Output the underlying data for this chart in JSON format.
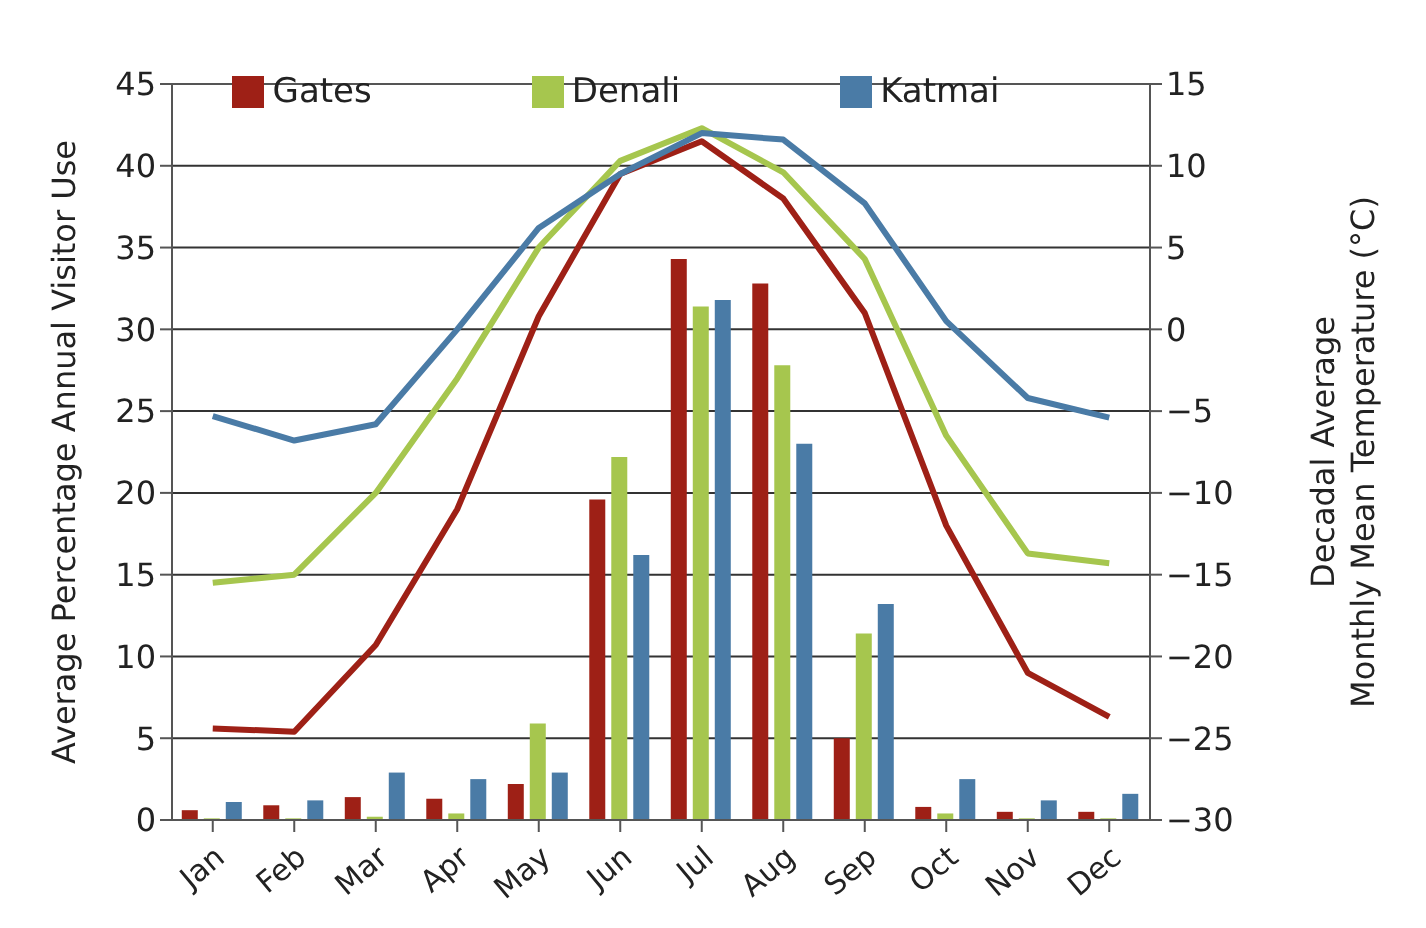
{
  "chart_data": {
    "type": "bar",
    "categories": [
      "Jan",
      "Feb",
      "Mar",
      "Apr",
      "May",
      "Jun",
      "Jul",
      "Aug",
      "Sep",
      "Oct",
      "Nov",
      "Dec"
    ],
    "ylabel": "Average Percentage Annual Visitor Use",
    "y2label": "Decadal Average\nMonthly Mean Temperature (°C)",
    "series": [
      {
        "name": "Gates",
        "color": "#9e2016",
        "values": [
          0.6,
          0.9,
          1.4,
          1.3,
          2.2,
          19.6,
          34.3,
          32.8,
          5.0,
          0.8,
          0.5,
          0.5
        ]
      },
      {
        "name": "Denali",
        "color": "#a6c64e",
        "values": [
          0.1,
          0.1,
          0.2,
          0.4,
          5.9,
          22.2,
          31.4,
          27.8,
          11.4,
          0.4,
          0.1,
          0.1
        ]
      },
      {
        "name": "Katmai",
        "color": "#4a7ba6",
        "values": [
          1.1,
          1.2,
          2.9,
          2.5,
          2.9,
          16.2,
          31.8,
          23.0,
          13.2,
          2.5,
          1.2,
          1.6
        ]
      },
      {
        "type": "line",
        "axis": "y2",
        "color": "#9e2016",
        "values": [
          -24.4,
          -24.6,
          -19.3,
          -11,
          0.8,
          9.5,
          11.5,
          8,
          1,
          -12,
          -21,
          -23.7
        ]
      },
      {
        "type": "line",
        "axis": "y2",
        "color": "#a6c64e",
        "values": [
          -15.5,
          -15,
          -10,
          -3,
          5,
          10.3,
          12.3,
          9.6,
          4.3,
          -6.5,
          -13.7,
          -14.3
        ]
      },
      {
        "type": "line",
        "axis": "y2",
        "color": "#4a7ba6",
        "values": [
          -5.3,
          -6.8,
          -5.8,
          0,
          6.2,
          9.5,
          12,
          11.6,
          7.7,
          0.5,
          -4.2,
          -5.4
        ]
      }
    ],
    "ylim": [
      0,
      45
    ],
    "yticks": [
      0,
      5,
      10,
      15,
      20,
      25,
      30,
      35,
      40,
      45
    ],
    "y2lim": [
      -30,
      15
    ],
    "y2ticks": [
      -30,
      -25,
      -20,
      -15,
      -10,
      -5,
      0,
      5,
      10,
      15
    ],
    "grid": "y",
    "legend": "top",
    "marker": "none",
    "line_style": "solid"
  }
}
